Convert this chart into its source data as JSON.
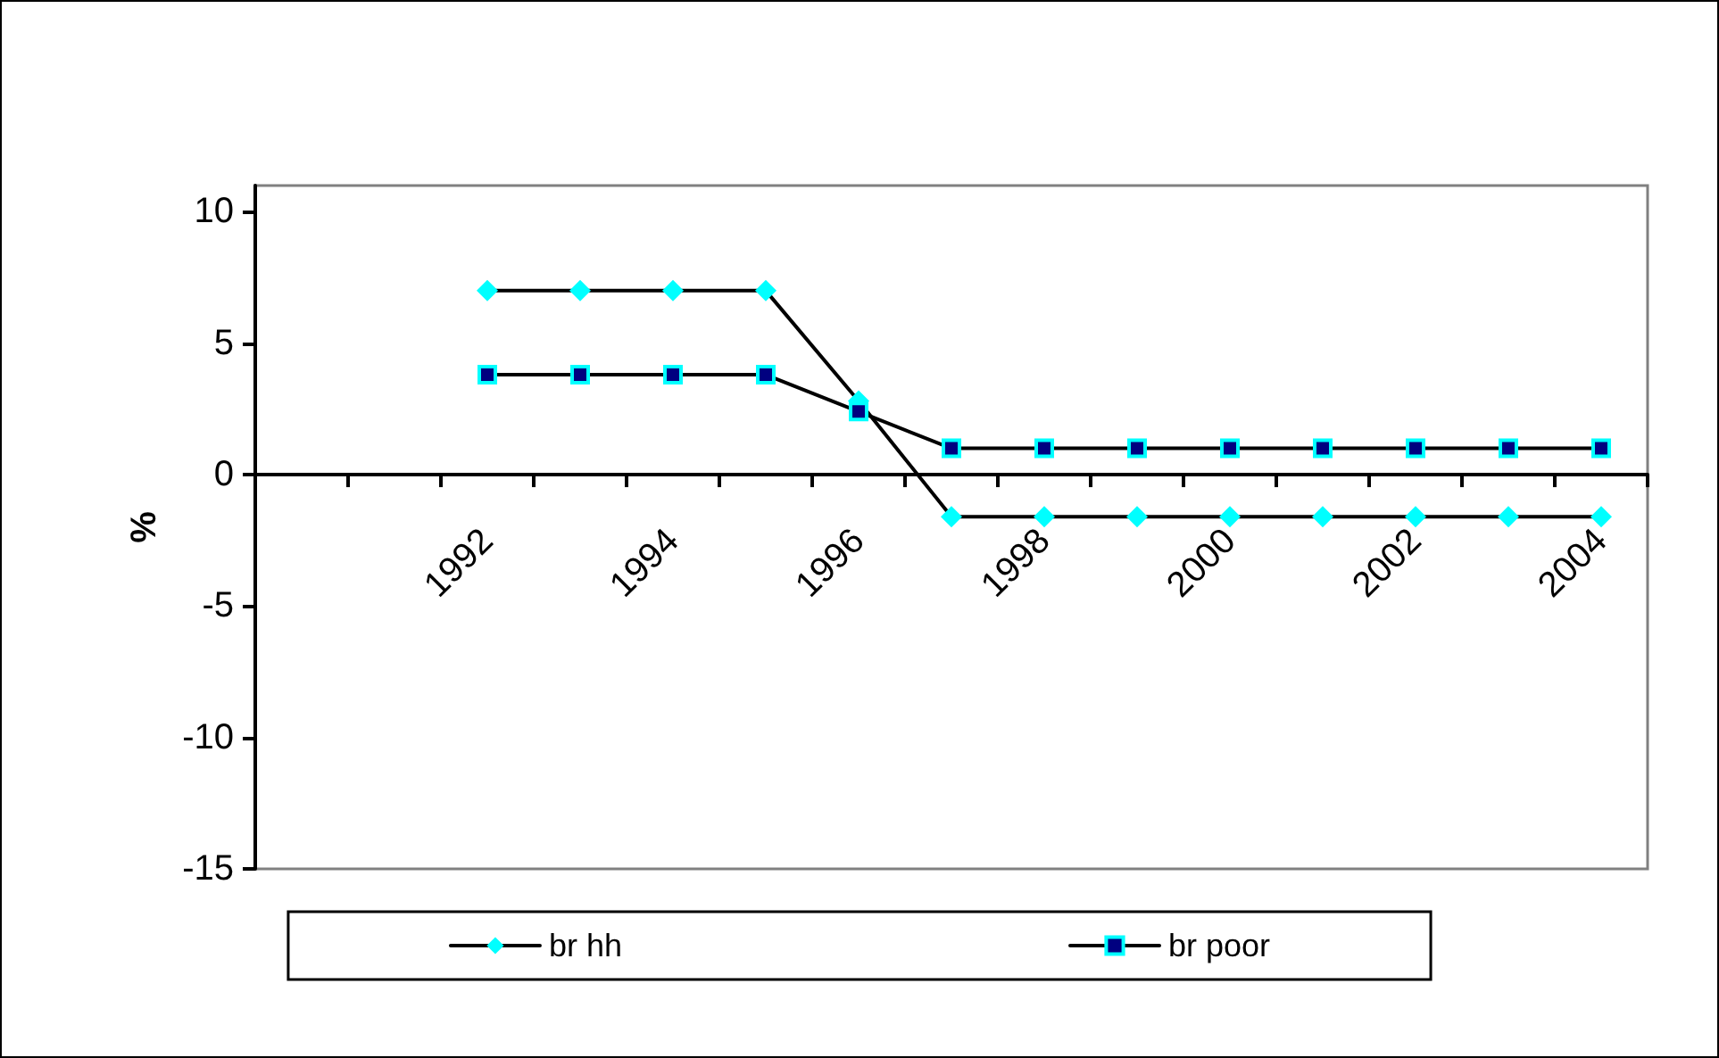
{
  "chart_data": {
    "type": "line",
    "ylabel": "%",
    "categories": [
      null,
      null,
      "1992",
      null,
      "1994",
      null,
      "1996",
      null,
      "1998",
      null,
      "2000",
      null,
      "2002",
      null,
      "2004"
    ],
    "series": [
      {
        "name": "br hh",
        "color": "#00ffff",
        "marker": "diamond",
        "values": [
          null,
          null,
          7,
          7,
          7,
          7,
          2.8,
          -1.6,
          -1.6,
          -1.6,
          -1.6,
          -1.6,
          -1.6,
          -1.6,
          -1.6
        ]
      },
      {
        "name": "br poor",
        "color": "#000080",
        "marker": "square",
        "values": [
          null,
          null,
          3.8,
          3.8,
          3.8,
          3.8,
          2.4,
          1,
          1,
          1,
          1,
          1,
          1,
          1,
          1
        ]
      }
    ],
    "ylim": [
      -15,
      11
    ],
    "yticks": [
      -15,
      -10,
      -5,
      0,
      5,
      10
    ],
    "grid": false,
    "legend": "bottom"
  }
}
